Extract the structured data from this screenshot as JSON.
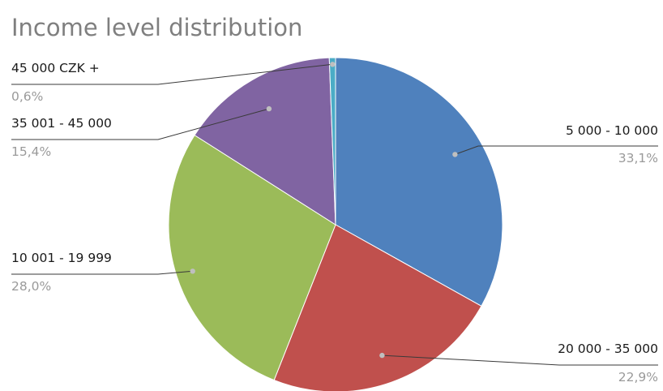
{
  "chart_data": {
    "type": "pie",
    "title": "Income level distribution",
    "slices": [
      {
        "label": "5 000 - 10 000",
        "percent_label": "33,1%",
        "value": 33.1,
        "color": "#4F81BD"
      },
      {
        "label": "20 000 - 35 000",
        "percent_label": "22,9%",
        "value": 22.9,
        "color": "#C0504D"
      },
      {
        "label": "10 001 - 19 999",
        "percent_label": "28,0%",
        "value": 28.0,
        "color": "#9BBB59"
      },
      {
        "label": "35 001 - 45 000",
        "percent_label": "15,4%",
        "value": 15.4,
        "color": "#8064A2"
      },
      {
        "label": "45 000 CZK +",
        "percent_label": "0,6%",
        "value": 0.6,
        "color": "#4BACC6"
      }
    ],
    "start_angle_deg": 0,
    "direction": "clockwise",
    "legend": "none"
  }
}
